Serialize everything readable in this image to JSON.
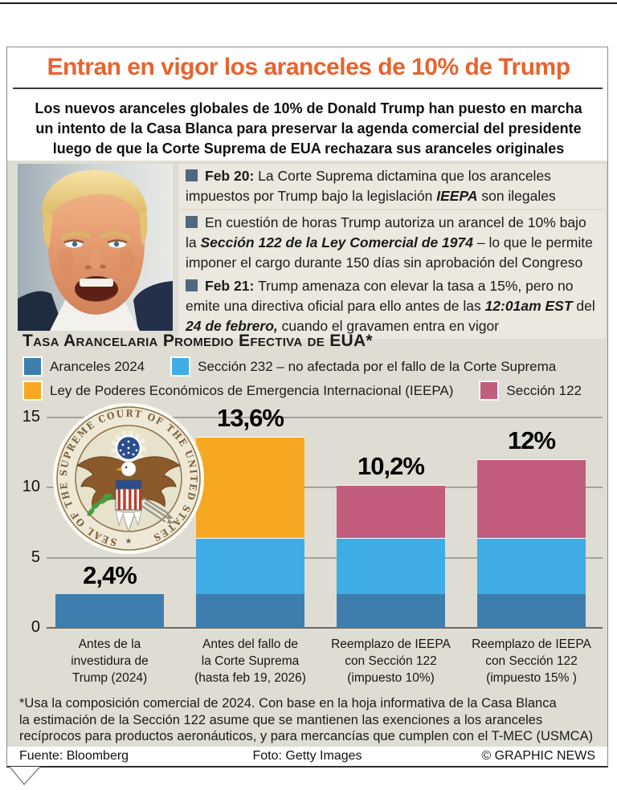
{
  "page": {
    "title": "Entran en vigor los aranceles de 10% de Trump",
    "title_color": "#e9632e",
    "subtitle": "Los nuevos aranceles globales de 10% de Donald Trump han puesto en marcha\nun intento de la Casa Blanca para preservar la agenda comercial del presidente\nluego de que la Corte Suprema de EUA rechazara sus aranceles originales"
  },
  "timeline": {
    "items": [
      {
        "segments": [
          {
            "text": "Feb 20: ",
            "style": "bold"
          },
          {
            "text": "La Corte Suprema dictamina que los aranceles impuestos por Trump bajo la legislación ",
            "style": "normal"
          },
          {
            "text": "IEEPA",
            "style": "bolditalic"
          },
          {
            "text": " son ilegales",
            "style": "normal"
          }
        ]
      },
      {
        "segments": [
          {
            "text": "En cuestión de horas Trump autoriza un arancel de 10% bajo la ",
            "style": "normal"
          },
          {
            "text": "Sección 122 de la Ley Comercial de 1974",
            "style": "bolditalic"
          },
          {
            "text": " – lo que le permite imponer el cargo durante 150 días sin aprobación del Congreso",
            "style": "normal"
          }
        ]
      },
      {
        "segments": [
          {
            "text": "Feb 21: ",
            "style": "bold"
          },
          {
            "text": "Trump amenaza con elevar la tasa a 15%, pero no emite una directiva oficial para ello antes de las ",
            "style": "normal"
          },
          {
            "text": "12:01am EST",
            "style": "bolditalic"
          },
          {
            "text": " del ",
            "style": "normal"
          },
          {
            "text": "24 de febrero,",
            "style": "bolditalic"
          },
          {
            "text": " cuando el gravamen entra en vigor",
            "style": "normal"
          }
        ]
      }
    ]
  },
  "chart": {
    "title": "Tasa Arancelaria Promedio Efectiva de EUA*"
  },
  "chart_data": {
    "type": "bar",
    "stacked": true,
    "title": "Tasa arancelaria promedio efectiva de EUA*",
    "categories": [
      "Antes de la\ninvestidura de\nTrump (2024)",
      "Antes del fallo de\nla Corte Suprema\n(hasta feb 19, 2026)",
      "Reemplazo de IEEPA\ncon Sección 122\n(impuesto 10%)",
      "Reemplazo de IEEPA\ncon Sección 122\n(impuesto 15% )"
    ],
    "series": [
      {
        "name": "Aranceles 2024",
        "color": "#3e7eae",
        "values": [
          2.4,
          2.4,
          2.4,
          2.4
        ]
      },
      {
        "name": "Sección 232 – no afectada por el fallo de la Corte Suprema",
        "color": "#3fade5",
        "values": [
          0,
          4.0,
          4.0,
          4.0
        ]
      },
      {
        "name": "Ley de Poderes Económicos de Emergencia Internacional (IEEPA)",
        "color": "#f7a823",
        "values": [
          0,
          7.2,
          0,
          0
        ]
      },
      {
        "name": "Sección 122",
        "color": "#c25d7d",
        "values": [
          0,
          0,
          3.8,
          5.6
        ]
      }
    ],
    "totals_labels": [
      "2,4%",
      "13,6%",
      "10,2%",
      "12%"
    ],
    "yticks": [
      0,
      5,
      10,
      15
    ],
    "ylim": [
      0,
      15
    ],
    "ylabel": "",
    "xlabel": "",
    "grid": true,
    "legend_position": "top"
  },
  "seal": {
    "ring_text": "SEAL OF THE SUPREME COURT OF THE UNITED STATES",
    "star": "★"
  },
  "footnote": "*Usa la composición comercial de 2024. Con base en la hoja informativa de la Casa Blanca\nla estimación de la Sección 122 asume que se mantienen las exenciones a los aranceles\nrecíprocos para productos aeronáuticos, y para mercancías que cumplen con el T-MEC (USMCA)",
  "footer": {
    "source": "Fuente: Bloomberg",
    "photo_credit": "Foto: Getty Images",
    "copyright": "© GRAPHIC NEWS"
  }
}
